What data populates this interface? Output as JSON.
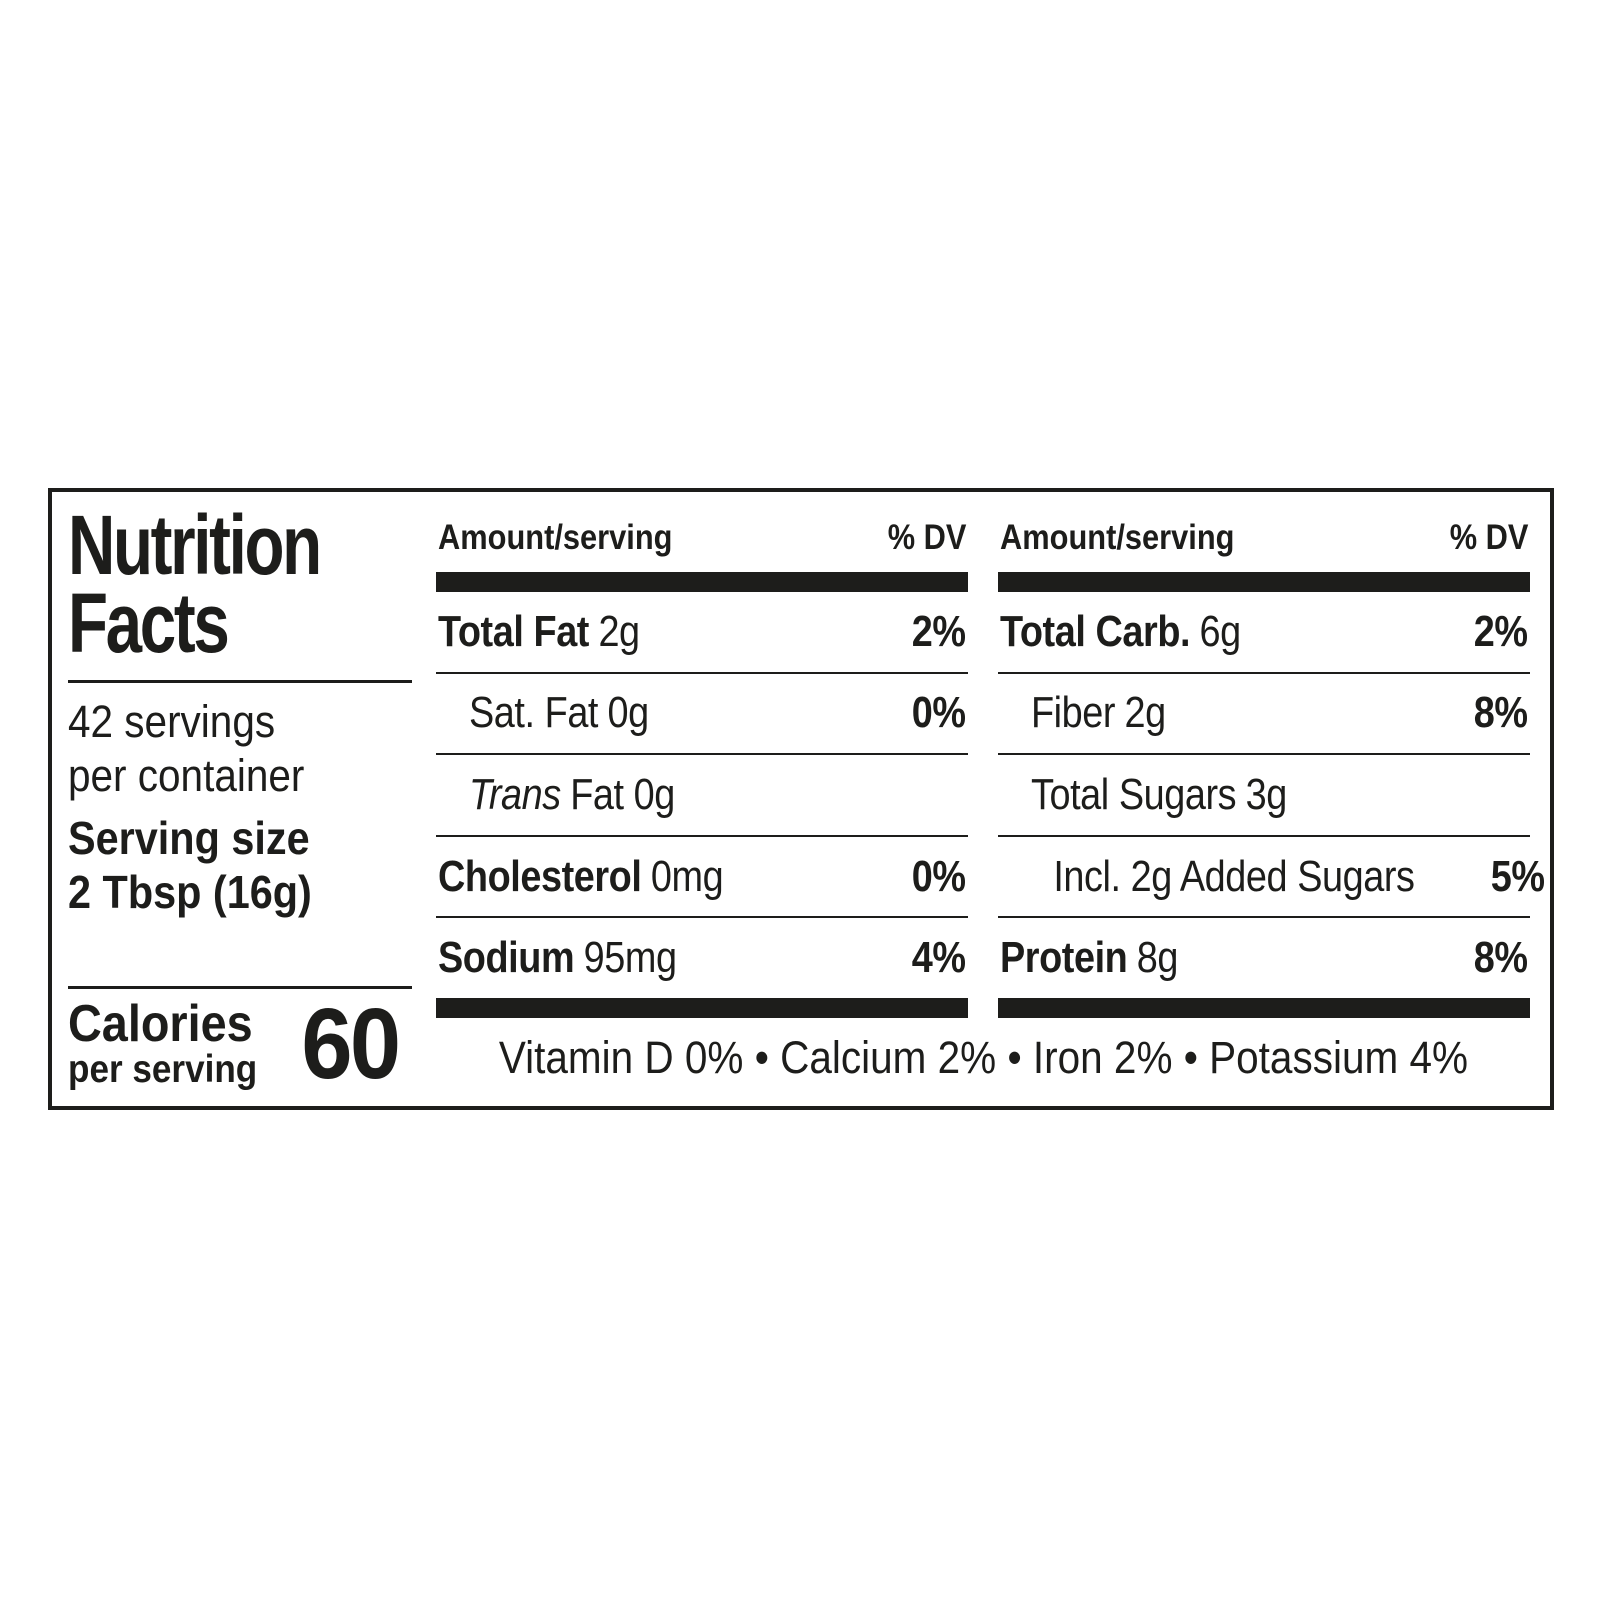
{
  "colors": {
    "ink": "#1d1d1b",
    "paper": "#ffffff"
  },
  "nutrition": {
    "title_lines": [
      "Nutrition",
      "Facts"
    ],
    "left": {
      "servings_line1": "42 servings",
      "servings_line2": "per container",
      "serving_size_label": "Serving size",
      "serving_size_value": "2 Tbsp (16g)",
      "calories_label": "Calories",
      "calories_sublabel": "per serving",
      "calories_value": "60"
    },
    "columns": [
      {
        "header_amount": "Amount/serving",
        "header_dv": "% DV",
        "rows": [
          {
            "name": "Total Fat",
            "amount": "2g",
            "dv": "2%"
          },
          {
            "name": "Sat. Fat",
            "amount": "0g",
            "dv": "0%"
          },
          {
            "name": "Trans",
            "amount": "Fat 0g",
            "dv": ""
          },
          {
            "name": "Cholesterol",
            "amount": "0mg",
            "dv": "0%"
          },
          {
            "name": "Sodium",
            "amount": "95mg",
            "dv": "4%"
          }
        ]
      },
      {
        "header_amount": "Amount/serving",
        "header_dv": "% DV",
        "rows": [
          {
            "name": "Total Carb.",
            "amount": "6g",
            "dv": "2%"
          },
          {
            "name": "Fiber",
            "amount": "2g",
            "dv": "8%"
          },
          {
            "name": "Total Sugars",
            "amount": "3g",
            "dv": ""
          },
          {
            "name": "Incl. 2g Added Sugars",
            "amount": "",
            "dv": "5%"
          },
          {
            "name": "Protein",
            "amount": "8g",
            "dv": "8%"
          }
        ]
      }
    ],
    "footer": "Vitamin D 0% • Calcium 2% • Iron 2% • Potassium 4%"
  }
}
